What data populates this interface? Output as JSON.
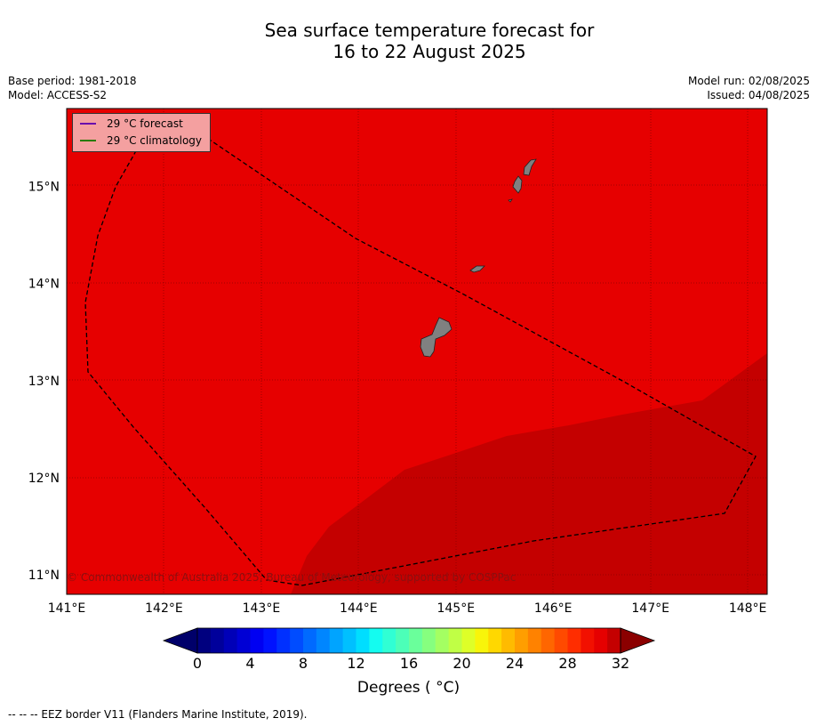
{
  "title_line1": "Sea surface temperature forecast for",
  "title_line2": "16 to 22 August 2025",
  "meta": {
    "base_period": "Base period: 1981-2018",
    "model": "Model: ACCESS-S2",
    "model_run": "Model run: 02/08/2025",
    "issued": "Issued: 04/08/2025"
  },
  "legend": {
    "forecast_label": "29 °C  forecast",
    "forecast_color": "#6a0dad",
    "climatology_label": "29 °C  climatology",
    "climatology_color": "#2a7a00"
  },
  "copyright": "© Commonwealth of Australia 2025, Bureau of Meteorology, supported by COSPPac",
  "colorbar": {
    "ticks": [
      "0",
      "4",
      "8",
      "12",
      "16",
      "20",
      "24",
      "28",
      "32"
    ],
    "units_label": "Degrees ( °C)"
  },
  "footnote": "--  --  -- EEZ border V11 (Flanders Marine Institute, 2019).",
  "chart_data": {
    "type": "heatmap",
    "title": "Sea surface temperature forecast for 16 to 22 August 2025",
    "x_ticks": [
      "141°E",
      "142°E",
      "143°E",
      "144°E",
      "145°E",
      "146°E",
      "147°E",
      "148°E"
    ],
    "y_ticks": [
      "15°N",
      "14°N",
      "13°N",
      "12°N",
      "11°N"
    ],
    "xlim": [
      141.0,
      148.2
    ],
    "ylim": [
      10.8,
      15.8
    ],
    "colorbar_range": [
      0,
      32
    ],
    "regions": [
      {
        "name": "29-30 °C",
        "color": "#e60000"
      },
      {
        "name": "30-31 °C",
        "color": "#c40000"
      }
    ],
    "colors": [
      "#00007f",
      "#00009b",
      "#0000b8",
      "#0000d5",
      "#0000f2",
      "#0012ff",
      "#0030ff",
      "#004cff",
      "#006aff",
      "#0086ff",
      "#00a4ff",
      "#00c0ff",
      "#00deff",
      "#14fcf0",
      "#30ffd4",
      "#4cffb8",
      "#6aff9b",
      "#86ff7f",
      "#a4ff62",
      "#c0ff45",
      "#deff28",
      "#f8f50a",
      "#ffd800",
      "#ffbb00",
      "#ff9e00",
      "#ff8200",
      "#ff6600",
      "#ff4a00",
      "#ff2d00",
      "#f21000",
      "#e60000",
      "#c40000",
      "#8b0000"
    ]
  }
}
